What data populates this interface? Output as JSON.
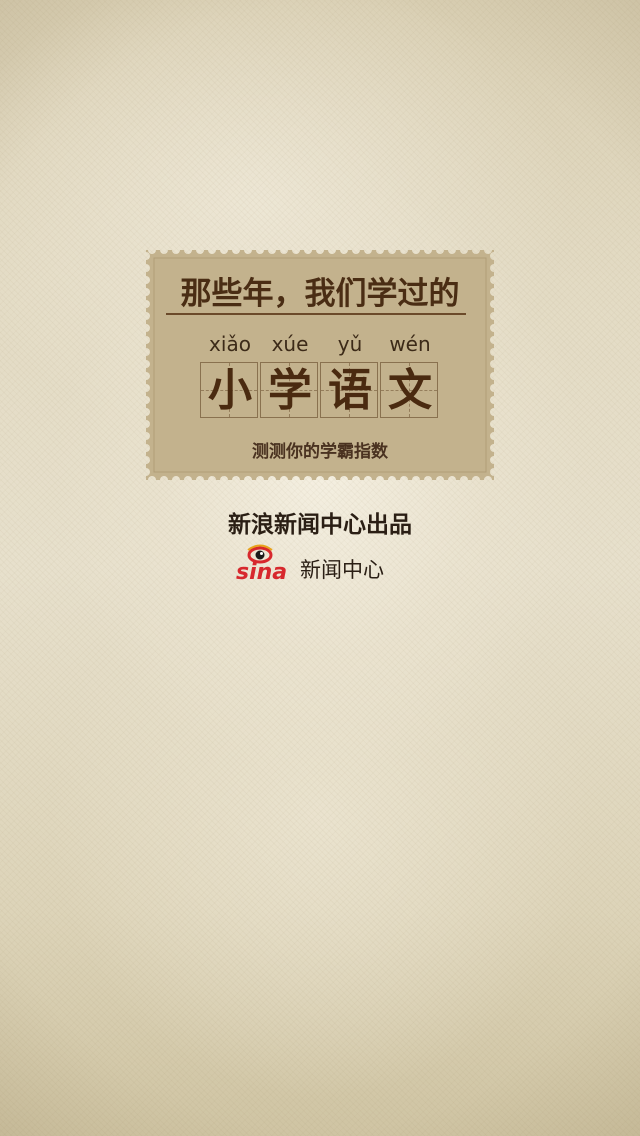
{
  "card": {
    "title": "那些年，我们学过的",
    "pinyin": [
      "xiǎo",
      "xúe",
      "yǔ",
      "wén"
    ],
    "characters": [
      "小",
      "学",
      "语",
      "文"
    ],
    "subtitle": "测测你的学霸指数"
  },
  "footer": {
    "producer": "新浪新闻中心出品",
    "logo_text": "sina",
    "brand_text": "新闻中心"
  },
  "colors": {
    "stamp_fill": "#c3b28d",
    "title_brown": "#4a2d14",
    "logo_red": "#d7282d",
    "text_dark": "#2a1e14"
  },
  "icons": {
    "logo": "sina-eye-logo"
  }
}
